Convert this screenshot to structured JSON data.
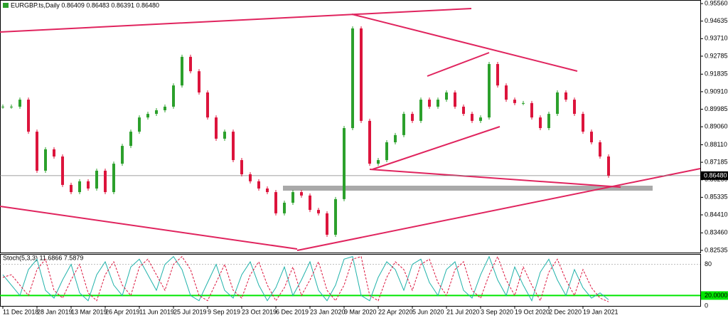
{
  "chart_data": [
    {
      "type": "candlestick",
      "title": "EURGBP.ts,Daily  0.86409 0.86483 0.86391 0.86480",
      "categories": [
        "11 Dec 2018",
        null,
        null,
        null,
        "28 Jan 2019",
        null,
        null,
        null,
        "13 Mar 2019",
        null,
        null,
        null,
        "26 Apr 2019",
        null,
        null,
        null,
        "11 Jun 2019",
        null,
        null,
        null,
        "25 Jul 2019",
        null,
        null,
        null,
        "9 Sep 2019",
        null,
        null,
        null,
        "23 Oct 2019",
        null,
        null,
        null,
        "6 Dec 2019",
        null,
        null,
        null,
        "23 Jan 2020",
        null,
        null,
        null,
        "9 Mar 2020",
        null,
        null,
        null,
        "22 Apr 2020",
        null,
        null,
        null,
        "5 Jun 2020",
        null,
        null,
        null,
        "21 Jul 2020",
        null,
        null,
        null,
        "3 Sep 2020",
        null,
        null,
        null,
        "19 Oct 2020",
        null,
        null,
        null,
        "2 Dec 2020",
        null,
        null,
        null,
        "19 Jan 2021",
        null,
        null,
        null
      ],
      "close": [
        0.9012,
        0.9012,
        0.9049,
        0.888,
        0.8674,
        0.8787,
        0.8749,
        0.8599,
        0.8561,
        0.8618,
        0.858,
        0.8674,
        0.8561,
        0.8711,
        0.8805,
        0.888,
        0.8955,
        0.8974,
        0.8993,
        0.9012,
        0.9124,
        0.9275,
        0.9199,
        0.9087,
        0.8955,
        0.8843,
        0.888,
        0.873,
        0.8655,
        0.8618,
        0.858,
        0.8561,
        0.8449,
        0.8505,
        0.8561,
        0.8543,
        0.8467,
        0.8449,
        0.8336,
        0.8524,
        0.8899,
        0.9425,
        0.8937,
        0.8711,
        0.873,
        0.8824,
        0.8862,
        0.8974,
        0.8937,
        0.9049,
        0.9012,
        0.9049,
        0.9087,
        0.9012,
        0.8974,
        0.8937,
        0.8955,
        0.9237,
        0.9124,
        0.9049,
        0.9031,
        0.9031,
        0.8955,
        0.8899,
        0.8974,
        0.9087,
        0.9049,
        0.8974,
        0.888,
        0.8824,
        0.8749,
        0.8648
      ],
      "up_color": "#2ca02c",
      "down_color": "#dc143c",
      "ylim": [
        0.8242,
        0.9575
      ],
      "yticks": [
        {
          "value": 0.9556,
          "label": "0.95560"
        },
        {
          "value": 0.94635,
          "label": "0.94635"
        },
        {
          "value": 0.9371,
          "label": "0.93710"
        },
        {
          "value": 0.92785,
          "label": "0.92785"
        },
        {
          "value": 0.91835,
          "label": "0.91835"
        },
        {
          "value": 0.9091,
          "label": "0.90910"
        },
        {
          "value": 0.89985,
          "label": "0.89985"
        },
        {
          "value": 0.8906,
          "label": "0.89060"
        },
        {
          "value": 0.8811,
          "label": "0.88110"
        },
        {
          "value": 0.87185,
          "label": "0.87185"
        },
        {
          "value": 0.8626,
          "label": "0.86260"
        },
        {
          "value": 0.85335,
          "label": "0.85335"
        },
        {
          "value": 0.8441,
          "label": "0.84410"
        },
        {
          "value": 0.8346,
          "label": "0.83460"
        },
        {
          "value": 0.82535,
          "label": "0.82535"
        }
      ],
      "price_line": {
        "value": 0.8648,
        "label": "0.86480"
      }
    },
    {
      "type": "line",
      "title": "Stoch(5,3,3) 11.6866 7.5879",
      "series": [
        {
          "name": "Main",
          "color": "#20b2aa",
          "values": [
            60,
            40,
            20,
            70,
            90,
            30,
            15,
            50,
            80,
            25,
            10,
            60,
            85,
            40,
            20,
            75,
            90,
            60,
            30,
            80,
            95,
            70,
            20,
            10,
            45,
            80,
            30,
            15,
            60,
            85,
            40,
            10,
            35,
            75,
            20,
            50,
            85,
            30,
            10,
            40,
            90,
            95,
            20,
            10,
            55,
            85,
            70,
            30,
            80,
            90,
            45,
            20,
            70,
            85,
            30,
            15,
            60,
            95,
            50,
            20,
            75,
            40,
            10,
            65,
            90,
            50,
            20,
            70,
            35,
            15,
            25,
            12
          ]
        },
        {
          "name": "Signal",
          "color": "#dc143c",
          "values": [
            55,
            60,
            40,
            20,
            70,
            90,
            30,
            15,
            50,
            80,
            25,
            10,
            60,
            85,
            40,
            20,
            75,
            90,
            60,
            30,
            80,
            95,
            70,
            20,
            10,
            45,
            80,
            30,
            15,
            60,
            85,
            40,
            10,
            35,
            75,
            20,
            50,
            85,
            30,
            10,
            40,
            90,
            95,
            20,
            10,
            55,
            85,
            70,
            30,
            80,
            90,
            45,
            20,
            70,
            85,
            30,
            15,
            60,
            95,
            50,
            20,
            75,
            40,
            10,
            65,
            90,
            50,
            20,
            70,
            35,
            15,
            8
          ]
        }
      ],
      "ylim": [
        0,
        100
      ],
      "yticks": [
        {
          "value": 80,
          "label": "80"
        },
        {
          "value": 20,
          "label": "20.0000"
        },
        0
      ],
      "level_color": "#00e600"
    }
  ]
}
